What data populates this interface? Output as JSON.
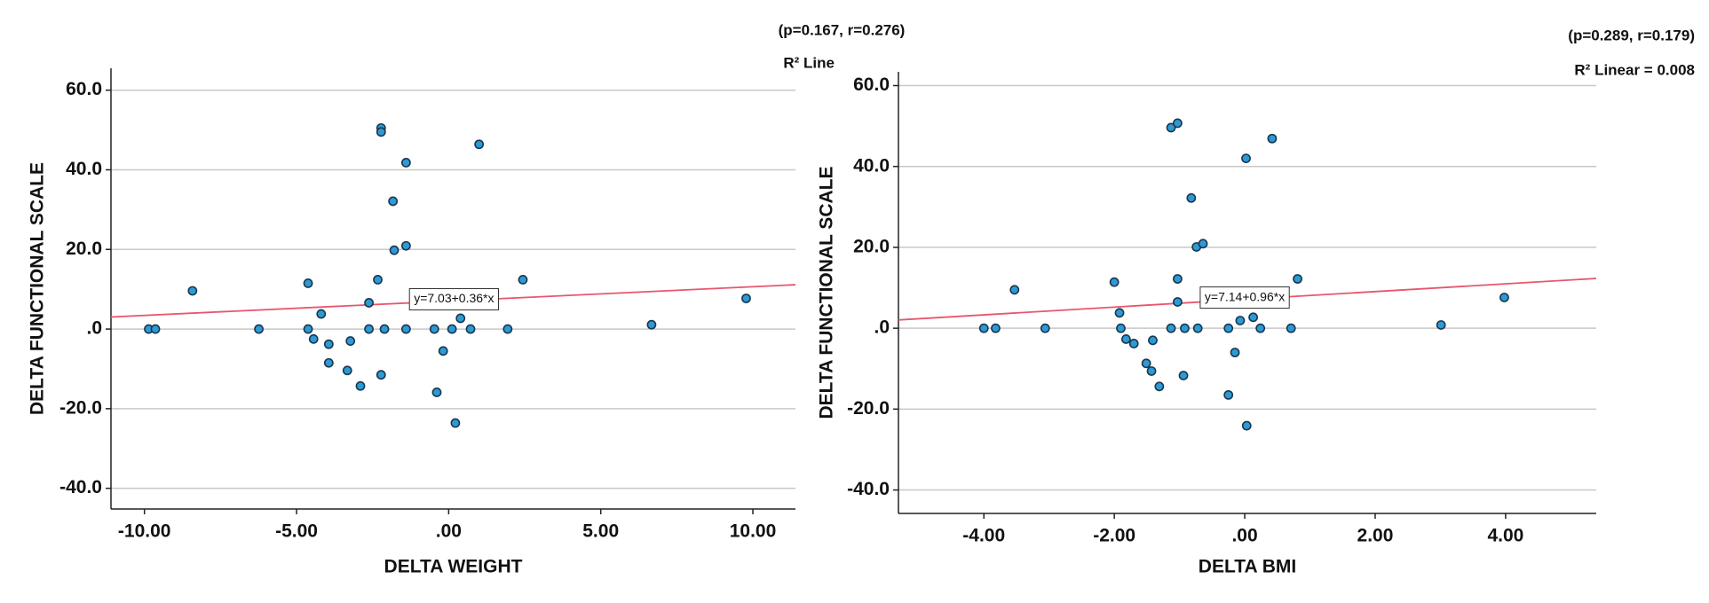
{
  "chart_data": [
    {
      "type": "scatter",
      "x_label": "DELTA WEIGHT",
      "y_label": "DELTA FUNCTIONAL SCALE",
      "annotations": [
        "(p=0.167, r=0.276)",
        "R² Line"
      ],
      "color": "#2b9bd3",
      "x": [
        -9.86,
        -9.64,
        -8.42,
        -6.24,
        -4.62,
        -4.62,
        -4.44,
        -4.19,
        -3.94,
        -3.94,
        -3.33,
        -3.23,
        -2.9,
        -2.62,
        -2.62,
        -2.33,
        -2.22,
        -2.22,
        -2.22,
        -2.11,
        -1.83,
        -1.79,
        -1.4,
        -1.4,
        -1.4,
        -0.47,
        -0.39,
        -0.18,
        0.11,
        0.22,
        0.39,
        0.72,
        1.0,
        1.94,
        2.44,
        6.67,
        9.78
      ],
      "values": [
        0,
        0,
        9.6,
        0,
        11.5,
        0,
        -2.5,
        3.8,
        -3.8,
        -8.5,
        -10.4,
        -3.0,
        -14.3,
        6.6,
        0,
        12.4,
        50.5,
        49.5,
        -11.5,
        0,
        32.1,
        19.8,
        41.8,
        20.9,
        0,
        0,
        -15.9,
        -5.5,
        0,
        -23.6,
        2.7,
        0,
        46.4,
        0,
        12.4,
        1.1,
        7.7
      ],
      "fit": {
        "intercept": 7.03,
        "slope": 0.36,
        "label": "y=7.03+0.36*x",
        "color": "#e8566b"
      },
      "xlim": [
        -11.1,
        11.4
      ],
      "xticks": [
        {
          "value": -10,
          "label": "-10.00"
        },
        {
          "value": -5,
          "label": "-5.00"
        },
        {
          "value": 0,
          "label": ".00"
        },
        {
          "value": 5,
          "label": "5.00"
        },
        {
          "value": 10,
          "label": "10.00"
        }
      ],
      "ylim": [
        -45.2,
        65.5
      ],
      "yticks": [
        {
          "value": -40,
          "label": "-40.0"
        },
        {
          "value": -20,
          "label": "-20.0"
        },
        {
          "value": 0,
          "label": ".0"
        },
        {
          "value": 20,
          "label": "20.0"
        },
        {
          "value": 40,
          "label": "40.0"
        },
        {
          "value": 60,
          "label": "60.0"
        }
      ],
      "grid": true
    },
    {
      "type": "scatter",
      "x_label": "DELTA BMI",
      "y_label": "DELTA FUNCTIONAL SCALE",
      "annotations": [
        "(p=0.289, r=0.179)",
        "R² Linear = 0.008"
      ],
      "color": "#2b9bd3",
      "x": [
        -4.0,
        -3.82,
        -3.53,
        -3.06,
        -2.0,
        -1.92,
        -1.9,
        -1.82,
        -1.7,
        -1.51,
        -1.43,
        -1.41,
        -1.31,
        -1.13,
        -1.13,
        -1.03,
        -1.03,
        -1.03,
        -0.94,
        -0.92,
        -0.82,
        -0.74,
        -0.72,
        -0.64,
        -0.25,
        -0.25,
        -0.15,
        -0.07,
        0.02,
        0.03,
        0.13,
        0.24,
        0.42,
        0.71,
        0.81,
        3.01,
        3.98
      ],
      "values": [
        0,
        0,
        9.5,
        0,
        11.4,
        3.8,
        0,
        -2.7,
        -3.8,
        -8.7,
        -10.6,
        -3.0,
        -14.4,
        49.6,
        0,
        50.7,
        12.2,
        6.5,
        -11.7,
        0,
        32.2,
        20.1,
        0,
        20.9,
        0,
        -16.5,
        -6.0,
        1.9,
        42.0,
        -24.1,
        2.7,
        0,
        46.9,
        0,
        12.2,
        0.8,
        7.6
      ],
      "fit": {
        "intercept": 7.14,
        "slope": 0.96,
        "label": "y=7.14+0.96*x",
        "color": "#e8566b"
      },
      "xlim": [
        -5.31,
        5.39
      ],
      "xticks": [
        {
          "value": -4,
          "label": "-4.00"
        },
        {
          "value": -2,
          "label": "-2.00"
        },
        {
          "value": 0,
          "label": ".00"
        },
        {
          "value": 2,
          "label": "2.00"
        },
        {
          "value": 4,
          "label": "4.00"
        }
      ],
      "ylim": [
        -45.8,
        63.4
      ],
      "yticks": [
        {
          "value": -40,
          "label": "-40.0"
        },
        {
          "value": -20,
          "label": "-20.0"
        },
        {
          "value": 0,
          "label": ".0"
        },
        {
          "value": 20,
          "label": "20.0"
        },
        {
          "value": 40,
          "label": "40.0"
        },
        {
          "value": 60,
          "label": "60.0"
        }
      ],
      "grid": true
    }
  ]
}
